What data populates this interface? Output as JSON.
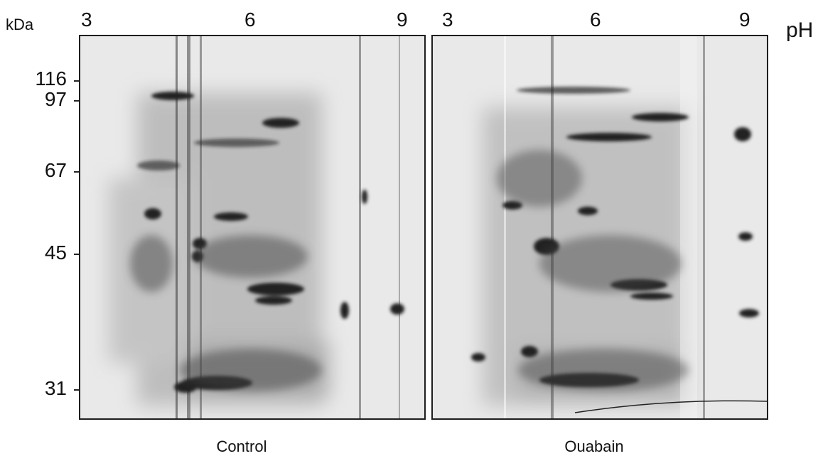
{
  "figure": {
    "mw_unit": "kDa",
    "ph_unit": "pH",
    "ph_ticks": [
      "3",
      "6",
      "9"
    ],
    "mw_markers": [
      "116",
      "97",
      "67",
      "45",
      "31"
    ],
    "panels": [
      {
        "caption": "Control"
      },
      {
        "caption": "Ouabain"
      }
    ]
  },
  "colors": {
    "background": "#ffffff",
    "gel": "#e9e9e9",
    "spot": "#222222",
    "frame": "#1e1e1e"
  }
}
